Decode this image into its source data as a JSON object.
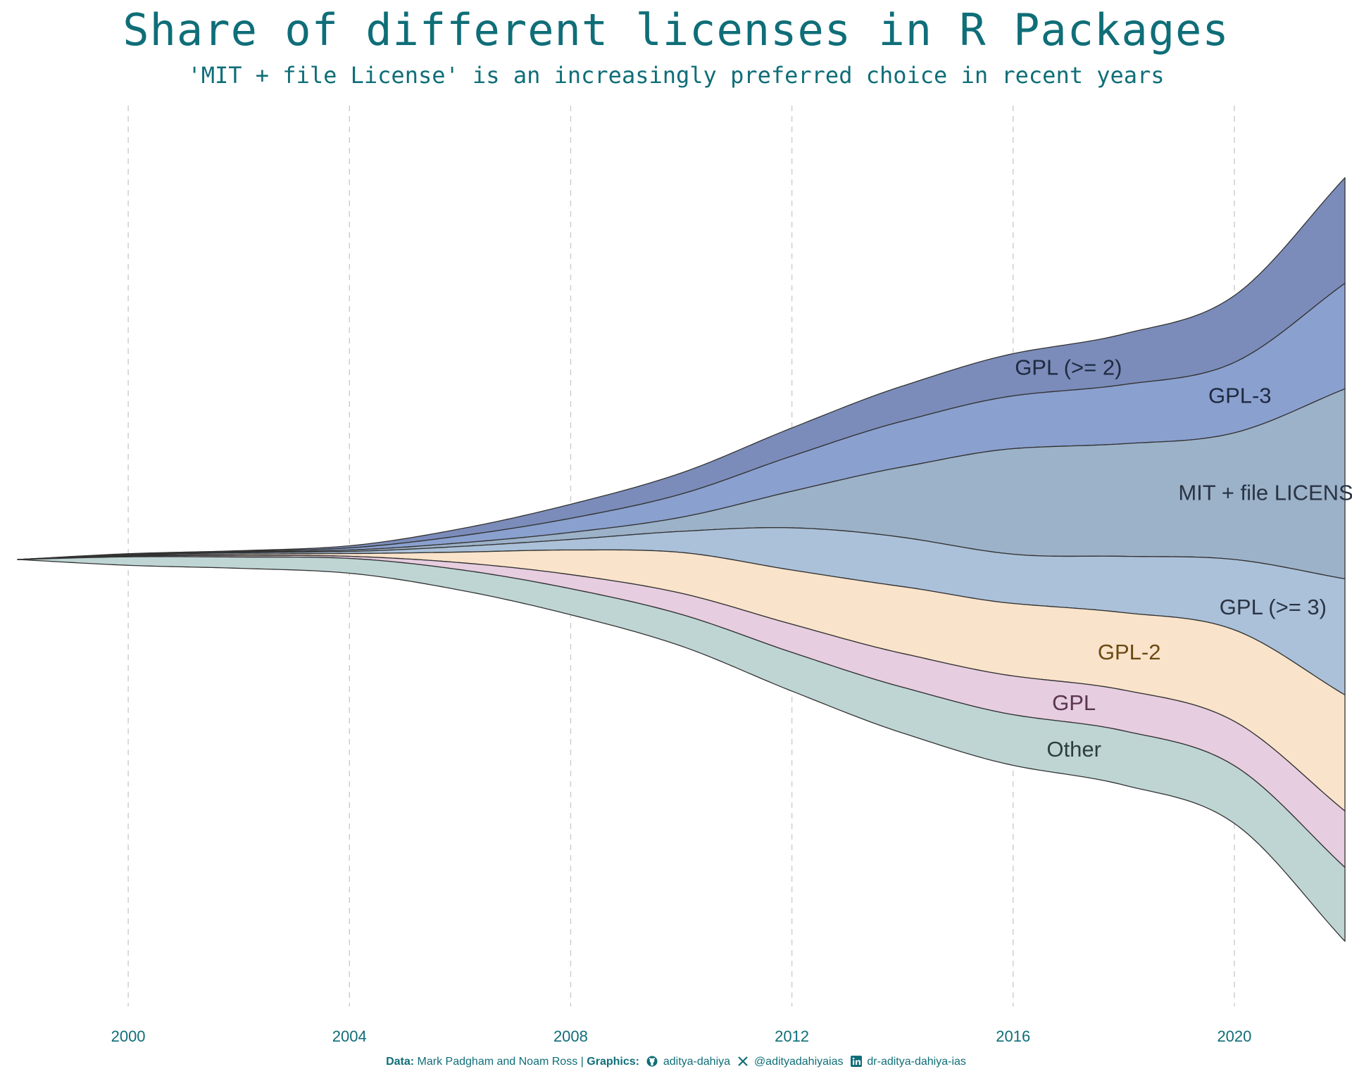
{
  "title": "Share of different licenses in R Packages",
  "subtitle": "'MIT + file License' is an increasingly preferred choice in recent years",
  "caption": {
    "data_label": "Data:",
    "data_text": "Mark Padgham and Noam Ross",
    "separator": "|",
    "graphics_label": "Graphics:",
    "github": "aditya-dahiya",
    "x_handle": "@adityadahiyaias",
    "linkedin": "dr-aditya-dahiya-ias"
  },
  "colors": {
    "title": "#0f6e78",
    "axis_text": "#0f6e78",
    "grid": "#cccccc",
    "outline": "#333333"
  },
  "chart_data": {
    "type": "area",
    "subtype": "streamgraph",
    "x_ticks": [
      2000,
      2004,
      2008,
      2012,
      2016,
      2020
    ],
    "x_range": [
      1998,
      2022
    ],
    "grid": "vertical dashed",
    "legend": "direct labels",
    "x": [
      1998,
      2000,
      2002,
      2004,
      2006,
      2008,
      2010,
      2012,
      2014,
      2016,
      2018,
      2020,
      2022
    ],
    "series": [
      {
        "name": "GPL (>= 2)",
        "color": "#7b8cba",
        "label_color": "#1e2a40",
        "label_x": 2017.0,
        "values": [
          0,
          0.5,
          1,
          3,
          10,
          20,
          30,
          40,
          50,
          60,
          72,
          95,
          150
        ]
      },
      {
        "name": "GPL-3",
        "color": "#8aa0cf",
        "label_color": "#1e2a40",
        "label_x": 2020.1,
        "values": [
          0,
          0.5,
          1,
          3,
          10,
          20,
          33,
          50,
          65,
          75,
          84,
          100,
          150
        ]
      },
      {
        "name": "MIT + file LICENSE",
        "color": "#9cb2c9",
        "label_color": "#2a3444",
        "label_x": 2020.7,
        "values": [
          0,
          0.5,
          1,
          2,
          5,
          10,
          20,
          52,
          100,
          150,
          160,
          180,
          270
        ]
      },
      {
        "name": "GPL (>= 3)",
        "color": "#abc1d9",
        "label_color": "#2a3444",
        "label_x": 2020.7,
        "values": [
          0,
          1,
          2,
          3,
          8,
          15,
          30,
          60,
          70,
          70,
          80,
          100,
          165
        ]
      },
      {
        "name": "GPL-2",
        "color": "#f9e3ca",
        "label_color": "#6b4a12",
        "label_x": 2018.1,
        "values": [
          0,
          1,
          2,
          4,
          15,
          35,
          58,
          77,
          95,
          103,
          110,
          130,
          165
        ]
      },
      {
        "name": "GPL",
        "color": "#e7cde0",
        "label_color": "#5a3550",
        "label_x": 2017.1,
        "values": [
          0,
          1,
          2,
          3,
          10,
          20,
          30,
          40,
          48,
          55,
          58,
          63,
          80
        ]
      },
      {
        "name": "Other",
        "color": "#bed5d4",
        "label_color": "#2e3e3e",
        "label_x": 2017.1,
        "values": [
          0,
          12,
          16,
          21,
          29,
          37,
          45,
          55,
          65,
          72,
          77,
          82,
          105
        ]
      }
    ]
  }
}
